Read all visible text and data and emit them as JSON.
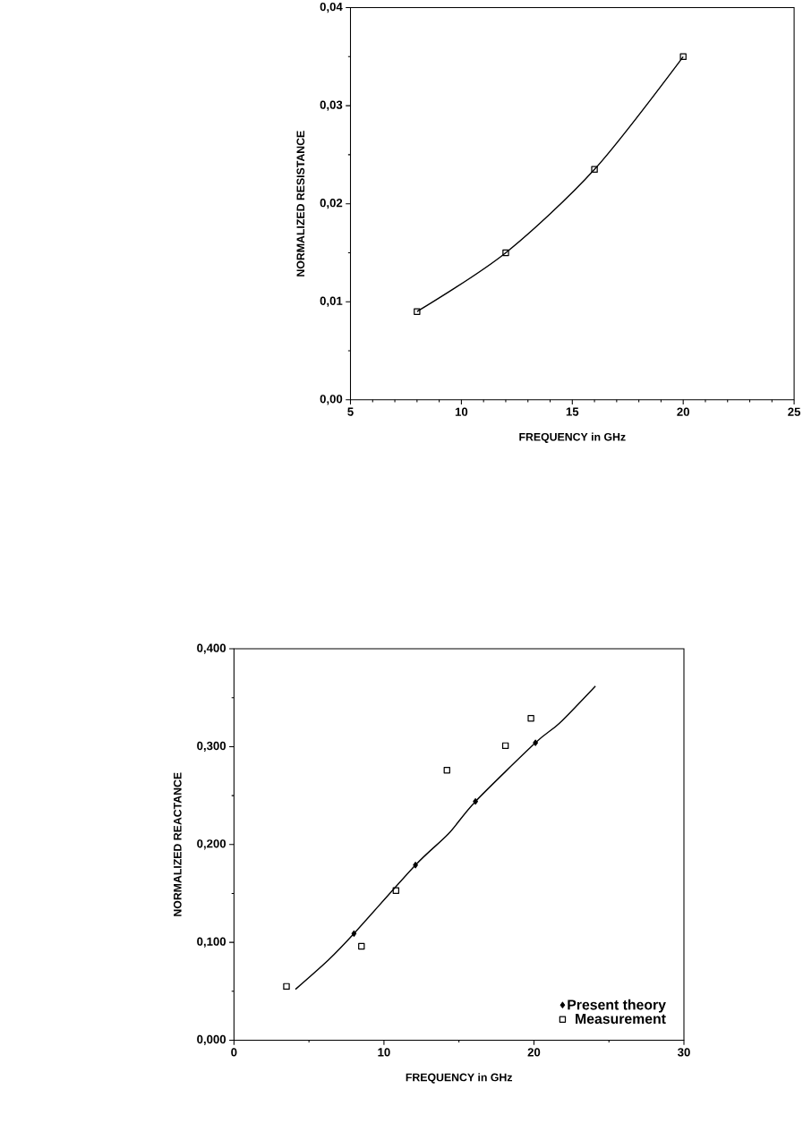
{
  "chart_data": [
    {
      "type": "line",
      "xlabel": "FREQUENCY in GHz",
      "ylabel": "NORMALIZED RESISTANCE",
      "x": [
        8,
        12,
        16,
        20
      ],
      "values": [
        0.009,
        0.015,
        0.0235,
        0.035
      ],
      "color": "#000000",
      "marker": "square",
      "xlim": [
        5,
        25
      ],
      "ylim": [
        0,
        0.04
      ],
      "xticks": [
        5,
        10,
        15,
        20,
        25
      ],
      "yticks": [
        {
          "value": 0,
          "label": "0,00"
        },
        {
          "value": 0.01,
          "label": "0,01"
        },
        {
          "value": 0.02,
          "label": "0,02"
        },
        {
          "value": 0.03,
          "label": "0,03"
        },
        {
          "value": 0.04,
          "label": "0,04"
        }
      ]
    },
    {
      "type": "scatter",
      "xlabel": "FREQUENCY in GHz",
      "ylabel": "NORMALIZED REACTANCE",
      "xlim": [
        0,
        30
      ],
      "ylim": [
        0,
        0.4
      ],
      "xticks": [
        0,
        10,
        20,
        30
      ],
      "yticks": [
        {
          "value": 0,
          "label": "0,000"
        },
        {
          "value": 0.1,
          "label": "0,100"
        },
        {
          "value": 0.2,
          "label": "0,200"
        },
        {
          "value": 0.3,
          "label": "0,300"
        },
        {
          "value": 0.4,
          "label": "0,400"
        }
      ],
      "legend": "bottom right",
      "series": [
        {
          "type": "line",
          "color": "#000000",
          "marker": "none",
          "x": [
            4.1,
            6.3,
            8.0,
            12.1,
            14.3,
            16.1,
            20.1,
            21.7,
            24.1
          ],
          "values": [
            0.052,
            0.082,
            0.109,
            0.179,
            0.211,
            0.244,
            0.304,
            0.324,
            0.362
          ]
        },
        {
          "name": "Present theory",
          "type": "scatter",
          "color": "#000000",
          "marker": "diamond",
          "x": [
            8.0,
            12.1,
            16.1,
            20.1
          ],
          "values": [
            0.109,
            0.179,
            0.244,
            0.304
          ]
        },
        {
          "name": "Measurement",
          "type": "scatter",
          "color": "#000000",
          "marker": "square",
          "x": [
            3.5,
            8.5,
            10.8,
            14.2,
            18.1,
            19.8
          ],
          "values": [
            0.055,
            0.096,
            0.153,
            0.276,
            0.301,
            0.329
          ]
        }
      ]
    }
  ]
}
